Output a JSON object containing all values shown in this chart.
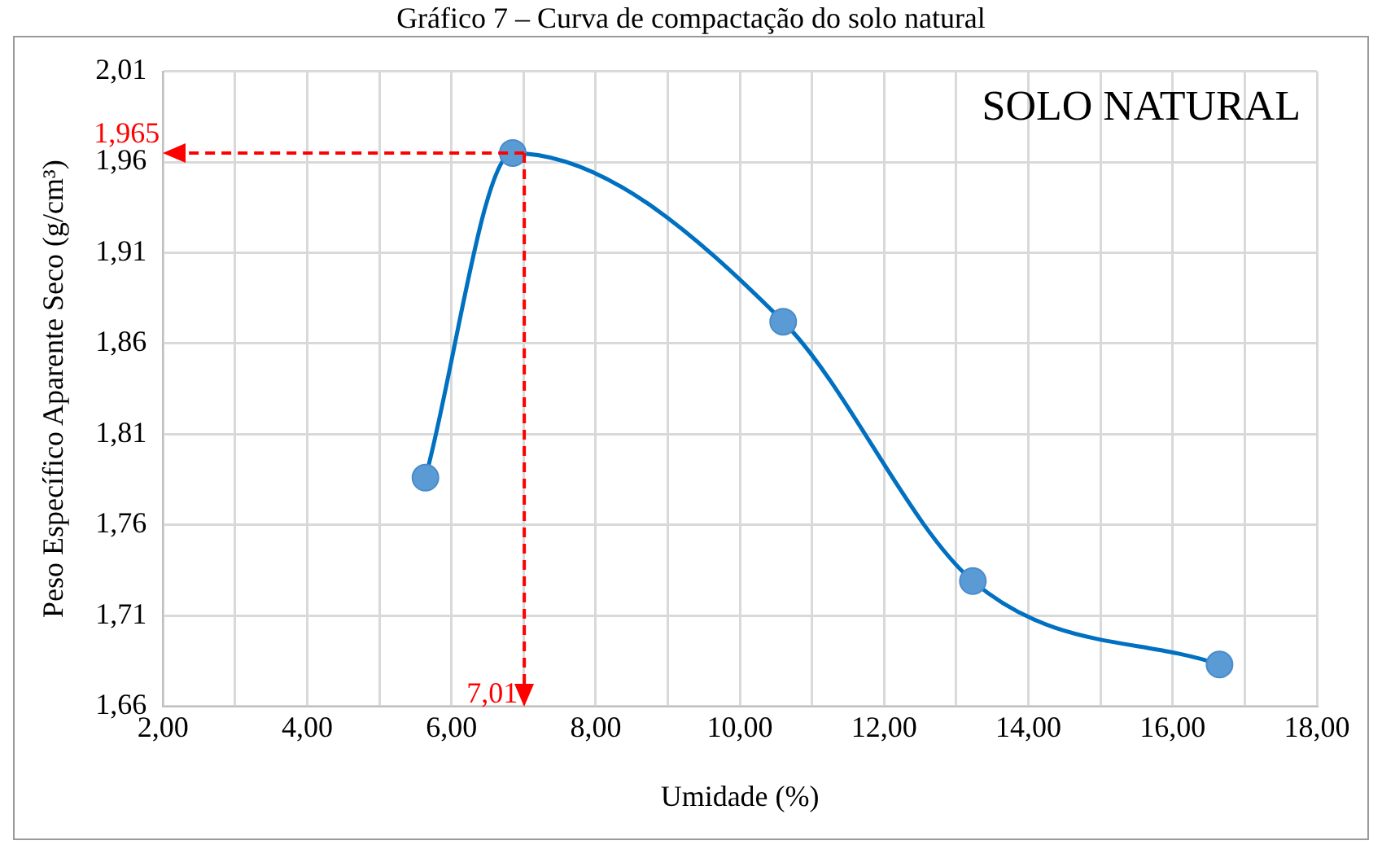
{
  "chart_data": {
    "type": "line",
    "title": "Gráfico 7 – Curva de compactação do solo natural",
    "xlabel": "Umidade (%)",
    "ylabel": "Peso Específico Aparente Seco (g/cm³)",
    "x": [
      5.64,
      6.85,
      10.6,
      13.23,
      16.65
    ],
    "series": [
      {
        "color": "#0070c0",
        "values": [
          1.786,
          1.965,
          1.872,
          1.729,
          1.683
        ]
      }
    ],
    "marker": "circle",
    "xlim": [
      2,
      18
    ],
    "xticks": [
      {
        "value": 2,
        "label": "2,00"
      },
      {
        "value": 3,
        "label": null
      },
      {
        "value": 4,
        "label": "4,00"
      },
      {
        "value": 5,
        "label": null
      },
      {
        "value": 6,
        "label": "6,00"
      },
      {
        "value": 7,
        "label": null
      },
      {
        "value": 8,
        "label": "8,00"
      },
      {
        "value": 9,
        "label": null
      },
      {
        "value": 10,
        "label": "10,00"
      },
      {
        "value": 11,
        "label": null
      },
      {
        "value": 12,
        "label": "12,00"
      },
      {
        "value": 13,
        "label": null
      },
      {
        "value": 14,
        "label": "14,00"
      },
      {
        "value": 15,
        "label": null
      },
      {
        "value": 16,
        "label": "16,00"
      },
      {
        "value": 17,
        "label": null
      },
      {
        "value": 18,
        "label": "18,00"
      }
    ],
    "ylim": [
      1.66,
      2.01
    ],
    "yticks": [
      {
        "value": 1.66,
        "label": "1,66"
      },
      {
        "value": 1.71,
        "label": "1,71"
      },
      {
        "value": 1.76,
        "label": "1,76"
      },
      {
        "value": 1.81,
        "label": "1,81"
      },
      {
        "value": 1.86,
        "label": "1,86"
      },
      {
        "value": 1.91,
        "label": "1,91"
      },
      {
        "value": 1.96,
        "label": "1,96"
      },
      {
        "value": 2.01,
        "label": "2,01"
      }
    ],
    "grid": true,
    "ref_lines": [
      {
        "axis": "y",
        "value": 1.965,
        "label": "1,965",
        "color": "#ff0000",
        "line_style": "dashed"
      },
      {
        "axis": "x",
        "value": 7.01,
        "label": "7,01",
        "color": "#ff0000",
        "line_style": "dashed"
      }
    ],
    "annotations": [
      "SOLO NATURAL"
    ]
  }
}
